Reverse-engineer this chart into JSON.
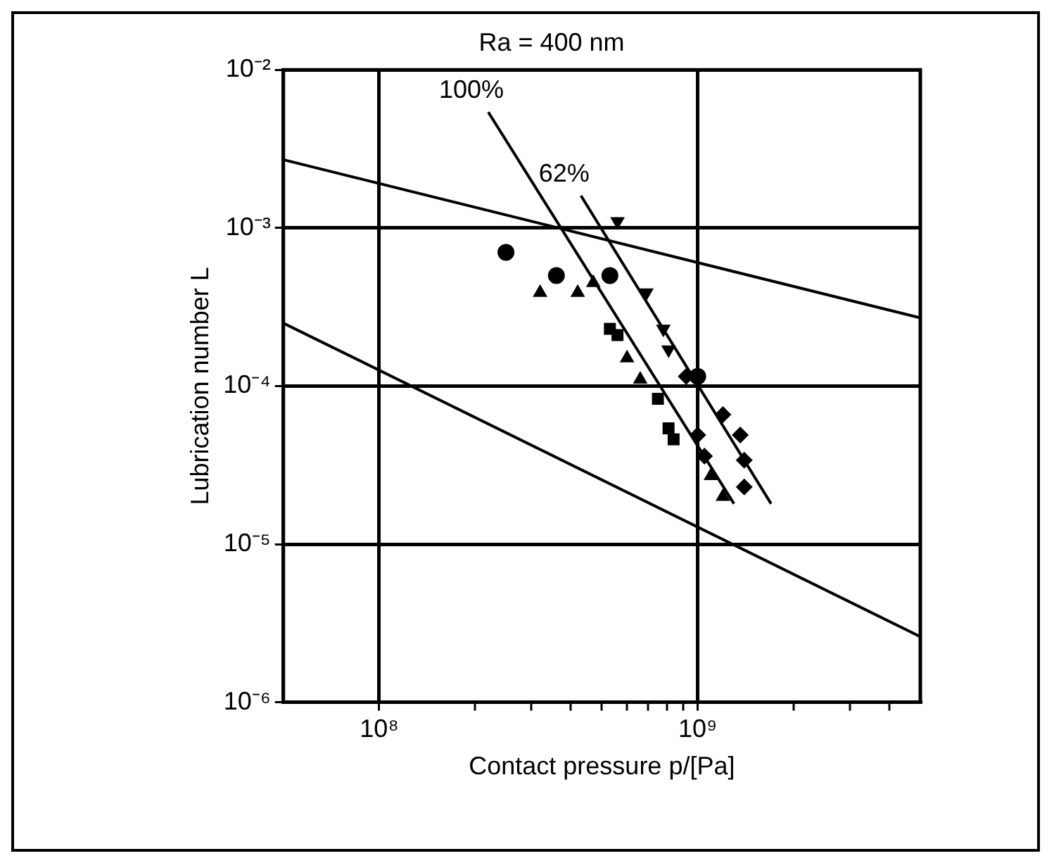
{
  "chart_data": {
    "type": "scatter",
    "title": "Ra = 400 nm",
    "xlabel": "Contact pressure p/[Pa]",
    "ylabel": "Lubrication number L",
    "log": "xy",
    "grid": true,
    "legend": false,
    "xlim": [
      50000000.0,
      5000000000.0
    ],
    "ylim": [
      1e-06,
      0.01
    ],
    "xticks": [
      {
        "value": 100000000.0,
        "label": "10⁸"
      },
      {
        "value": 200000000.0,
        "label": null
      },
      {
        "value": 300000000.0,
        "label": null
      },
      {
        "value": 400000000.0,
        "label": null
      },
      {
        "value": 500000000.0,
        "label": null
      },
      {
        "value": 600000000.0,
        "label": null
      },
      {
        "value": 700000000.0,
        "label": null
      },
      {
        "value": 800000000.0,
        "label": null
      },
      {
        "value": 900000000.0,
        "label": null
      },
      {
        "value": 1000000000.0,
        "label": "10⁹"
      },
      {
        "value": 2000000000.0,
        "label": null
      },
      {
        "value": 3000000000.0,
        "label": null
      },
      {
        "value": 4000000000.0,
        "label": null
      }
    ],
    "yticks": [
      {
        "value": 1e-06,
        "label": "10⁻⁶"
      },
      {
        "value": 1e-05,
        "label": "10⁻⁵"
      },
      {
        "value": 0.0001,
        "label": "10⁻⁴"
      },
      {
        "value": 0.001,
        "label": "10⁻³"
      },
      {
        "value": 0.01,
        "label": "10⁻²"
      }
    ],
    "series": [
      {
        "type": "line",
        "color": "#000000",
        "marker": "none",
        "x": [
          50000000.0,
          5000000000.0
        ],
        "values": [
          0.0027,
          0.00027
        ]
      },
      {
        "type": "line",
        "color": "#000000",
        "marker": "none",
        "x": [
          50000000.0,
          5000000000.0
        ],
        "values": [
          0.00025,
          2.6e-06
        ]
      },
      {
        "type": "line",
        "color": "#000000",
        "marker": "none",
        "x": [
          220000000.0,
          1300000000.0
        ],
        "values": [
          0.0054,
          1.8e-05
        ]
      },
      {
        "type": "line",
        "color": "#000000",
        "marker": "none",
        "x": [
          430000000.0,
          1700000000.0
        ],
        "values": [
          0.0016,
          1.8e-05
        ]
      },
      {
        "type": "scatter",
        "color": "#000000",
        "marker": "circle",
        "x": [
          250000000.0,
          360000000.0,
          530000000.0,
          1000000000.0
        ],
        "values": [
          0.0007,
          0.0005,
          0.0005,
          0.000115
        ]
      },
      {
        "type": "scatter",
        "color": "#000000",
        "marker": "triangle",
        "x": [
          320000000.0,
          420000000.0,
          470000000.0,
          600000000.0,
          660000000.0,
          1100000000.0,
          1200000000.0
        ],
        "values": [
          0.00039,
          0.00039,
          0.00045,
          0.00015,
          0.00011,
          2.7e-05,
          2e-05
        ]
      },
      {
        "type": "scatter",
        "color": "#000000",
        "marker": "triangle-down",
        "x": [
          560000000.0,
          690000000.0,
          780000000.0,
          810000000.0
        ],
        "values": [
          0.0011,
          0.00039,
          0.00023,
          0.00017
        ]
      },
      {
        "type": "scatter",
        "color": "#000000",
        "marker": "square",
        "x": [
          530000000.0,
          560000000.0,
          750000000.0,
          810000000.0,
          840000000.0
        ],
        "values": [
          0.00023,
          0.00021,
          8.3e-05,
          5.4e-05,
          4.6e-05
        ]
      },
      {
        "type": "scatter",
        "color": "#000000",
        "marker": "diamond",
        "x": [
          920000000.0,
          1200000000.0,
          1360000000.0,
          1400000000.0,
          1400000000.0,
          1000000000.0,
          1050000000.0
        ],
        "values": [
          0.000115,
          6.6e-05,
          4.9e-05,
          3.4e-05,
          2.3e-05,
          4.9e-05,
          3.6e-05
        ]
      }
    ],
    "annotations": [
      {
        "text": "100%",
        "x": 220000000.0,
        "y": 0.0054
      },
      {
        "text": "62%",
        "x": 430000000.0,
        "y": 0.0016
      }
    ]
  }
}
